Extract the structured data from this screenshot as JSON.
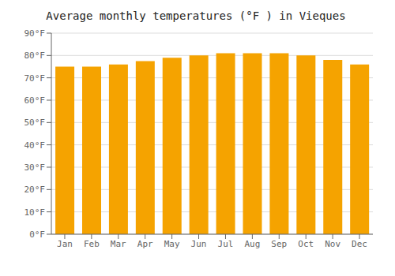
{
  "chart_data": {
    "type": "bar",
    "title": "Average monthly temperatures (°F ) in Vieques",
    "categories": [
      "Jan",
      "Feb",
      "Mar",
      "Apr",
      "May",
      "Jun",
      "Jul",
      "Aug",
      "Sep",
      "Oct",
      "Nov",
      "Dec"
    ],
    "values": [
      75,
      75,
      76,
      77.5,
      79,
      80,
      81,
      81,
      81,
      80,
      78,
      76
    ],
    "color": "#F5A300",
    "ylim": [
      0,
      90
    ],
    "yticks": [
      {
        "value": 0,
        "label": "0°F"
      },
      {
        "value": 10,
        "label": "10°F"
      },
      {
        "value": 20,
        "label": "20°F"
      },
      {
        "value": 30,
        "label": "30°F"
      },
      {
        "value": 40,
        "label": "40°F"
      },
      {
        "value": 50,
        "label": "50°F"
      },
      {
        "value": 60,
        "label": "60°F"
      },
      {
        "value": 70,
        "label": "70°F"
      },
      {
        "value": 80,
        "label": "80°F"
      },
      {
        "value": 90,
        "label": "90°F"
      }
    ],
    "grid": true
  }
}
